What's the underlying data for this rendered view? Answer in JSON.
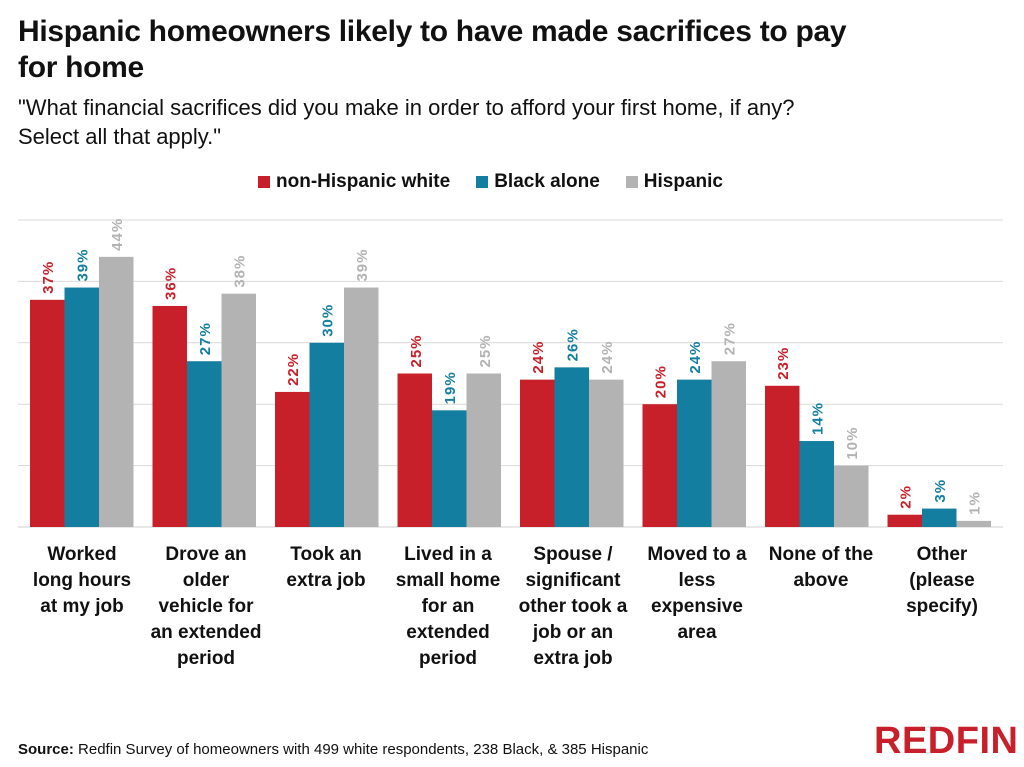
{
  "title": "Hispanic homeowners likely to have  made  sacrifices to pay for home",
  "subtitle": "\"What financial sacrifices did you make in order to afford your first home, if any? Select all that apply.\"",
  "source_label": "Source:",
  "source_text": "Redfin Survey of homeowners with 499 white respondents, 238 Black, & 385 Hispanic",
  "logo": "REDFIN",
  "chart_data": {
    "type": "bar",
    "categories": [
      "Worked long hours at my job",
      "Drove an older vehicle for an extended period",
      "Took an extra job",
      "Lived in a small home for an extended period",
      "Spouse / significant other took a job or an extra job",
      "Moved to a less expensive area",
      "None of the above",
      "Other (please specify)"
    ],
    "series": [
      {
        "name": "non-Hispanic white",
        "color": "#c8202a",
        "values": [
          37,
          36,
          22,
          25,
          24,
          20,
          23,
          2
        ]
      },
      {
        "name": "Black alone",
        "color": "#137ea0",
        "values": [
          39,
          27,
          30,
          19,
          26,
          24,
          14,
          3
        ]
      },
      {
        "name": "Hispanic",
        "color": "#b3b3b3",
        "values": [
          44,
          38,
          39,
          25,
          24,
          27,
          10,
          1
        ]
      }
    ],
    "data_labels": [
      [
        "37%",
        "36%",
        "22%",
        "25%",
        "24%",
        "20%",
        "23%",
        "2%"
      ],
      [
        "39%",
        "27%",
        "30%",
        "19%",
        "26%",
        "24%",
        "14%",
        "3%"
      ],
      [
        "44%",
        "38%",
        "39%",
        "25%",
        "24%",
        "27%",
        "10%",
        "1%"
      ]
    ],
    "ylim": [
      0,
      50
    ],
    "grid": true,
    "legend_position": "top",
    "xlabel": "",
    "ylabel": ""
  }
}
